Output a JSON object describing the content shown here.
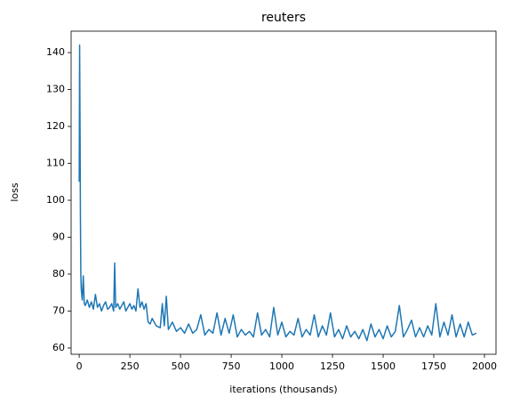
{
  "chart_data": {
    "type": "line",
    "title": "reuters",
    "x_label": "iterations (thousands)",
    "y_label": "loss",
    "x": [
      0,
      2,
      4,
      6,
      8,
      10,
      15,
      20,
      25,
      30,
      40,
      50,
      60,
      70,
      80,
      90,
      100,
      110,
      120,
      130,
      140,
      150,
      160,
      170,
      175,
      180,
      190,
      200,
      210,
      220,
      230,
      240,
      250,
      260,
      270,
      280,
      290,
      300,
      310,
      320,
      330,
      340,
      350,
      360,
      380,
      400,
      410,
      420,
      430,
      440,
      460,
      480,
      500,
      520,
      540,
      560,
      580,
      600,
      620,
      640,
      660,
      680,
      700,
      720,
      740,
      760,
      780,
      800,
      820,
      840,
      860,
      880,
      900,
      920,
      940,
      960,
      980,
      1000,
      1020,
      1040,
      1060,
      1080,
      1100,
      1120,
      1140,
      1160,
      1180,
      1200,
      1220,
      1240,
      1260,
      1280,
      1300,
      1320,
      1340,
      1360,
      1380,
      1400,
      1420,
      1440,
      1460,
      1480,
      1500,
      1520,
      1540,
      1560,
      1580,
      1600,
      1620,
      1640,
      1660,
      1680,
      1700,
      1720,
      1740,
      1760,
      1780,
      1800,
      1820,
      1840,
      1860,
      1880,
      1900,
      1920,
      1940,
      1960
    ],
    "values": [
      105,
      142,
      120,
      95,
      80,
      76,
      73,
      79.5,
      72,
      71.5,
      73,
      71,
      72.5,
      70.5,
      74.5,
      71,
      72,
      70,
      71.5,
      72.5,
      70.5,
      71,
      72,
      70,
      83,
      71,
      72,
      70.5,
      71.5,
      72.5,
      70,
      71,
      72,
      70.5,
      71.5,
      70,
      76,
      71,
      72.5,
      70.5,
      72,
      67,
      66.5,
      68,
      66,
      65.5,
      72,
      66,
      74,
      65,
      67,
      64.5,
      65.5,
      64,
      66.5,
      64,
      65,
      69,
      63.5,
      65,
      64,
      69.5,
      63.5,
      68,
      64,
      69,
      63,
      65,
      63.5,
      64.5,
      63,
      69.5,
      63.5,
      65,
      63,
      71,
      63.5,
      67,
      63,
      64.5,
      63.5,
      68,
      63,
      65,
      63.5,
      69,
      63,
      66,
      63.5,
      69.5,
      63,
      65,
      62.5,
      66,
      63,
      64.5,
      62.5,
      65,
      62,
      66.5,
      63,
      65,
      62.5,
      66,
      63,
      64.5,
      71.5,
      63,
      65,
      67.5,
      63,
      65.5,
      63,
      66,
      63.5,
      72,
      63,
      67,
      63.5,
      69,
      63,
      66.5,
      63,
      67,
      63.5,
      64
    ],
    "color": "#1f77b4",
    "xlim": [
      -40,
      2057
    ],
    "ylim": [
      58.3,
      145.8
    ],
    "xticks": [
      0,
      250,
      500,
      750,
      1000,
      1250,
      1500,
      1750,
      2000
    ],
    "yticks": [
      60,
      70,
      80,
      90,
      100,
      110,
      120,
      130,
      140
    ]
  }
}
